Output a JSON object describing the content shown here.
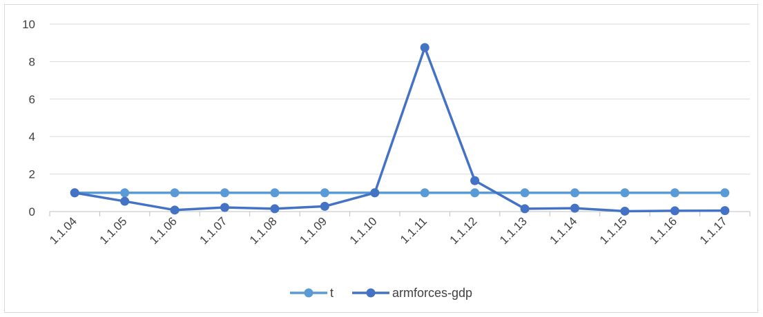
{
  "chart_data": {
    "type": "line",
    "title": "",
    "xlabel": "",
    "ylabel": "",
    "categories": [
      "1.1.04",
      "1.1.05",
      "1.1.06",
      "1.1.07",
      "1.1.08",
      "1.1.09",
      "1.1.10",
      "1.1.11",
      "1.1.12",
      "1.1.13",
      "1.1.14",
      "1.1.15",
      "1.1.16",
      "1.1.17"
    ],
    "ylim": [
      0,
      10
    ],
    "yticks": [
      "0",
      "2",
      "4",
      "6",
      "8",
      "10"
    ],
    "grid": true,
    "legend_position": "bottom",
    "series": [
      {
        "name": "t",
        "color": "#5b9bd5",
        "values": [
          1,
          1,
          1,
          1,
          1,
          1,
          1,
          1,
          1,
          1,
          1,
          1,
          1,
          1
        ]
      },
      {
        "name": "armforces-gdp",
        "color": "#4472c4",
        "values": [
          1.0,
          0.55,
          0.08,
          0.22,
          0.15,
          0.28,
          1.0,
          8.75,
          1.65,
          0.15,
          0.18,
          0.02,
          0.04,
          0.05
        ]
      }
    ]
  }
}
